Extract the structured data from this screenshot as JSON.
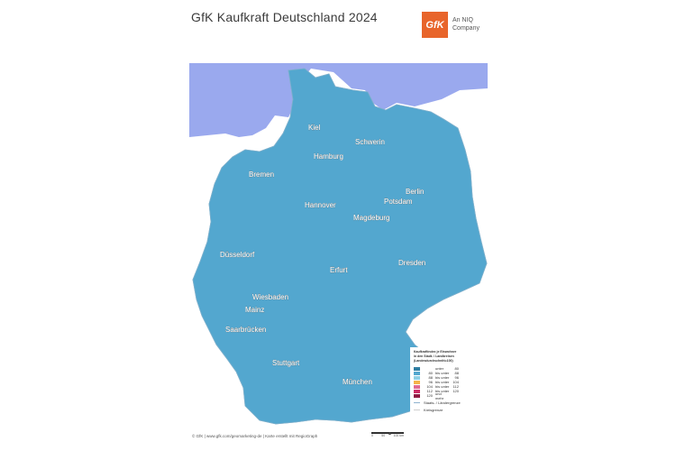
{
  "header": {
    "title": "GfK Kaufkraft Deutschland 2024",
    "logo_text": "GfK",
    "logo_sub_1": "An NIQ",
    "logo_sub_2": "Company"
  },
  "colors": {
    "sea": "#9aa9ee",
    "c_unter_80": "#2f7ea2",
    "c_80_88": "#53a7cf",
    "c_88_96": "#8ecfe4",
    "c_96_104": "#f5b34a",
    "c_104_112": "#e06a92",
    "c_112_120": "#cc2f67",
    "c_120": "#8f1a43"
  },
  "cities": [
    {
      "name": "Kiel"
    },
    {
      "name": "Schwerin"
    },
    {
      "name": "Hamburg"
    },
    {
      "name": "Bremen"
    },
    {
      "name": "Berlin"
    },
    {
      "name": "Hannover"
    },
    {
      "name": "Potsdam"
    },
    {
      "name": "Magdeburg"
    },
    {
      "name": "Düsseldorf"
    },
    {
      "name": "Erfurt"
    },
    {
      "name": "Dresden"
    },
    {
      "name": "Wiesbaden"
    },
    {
      "name": "Mainz"
    },
    {
      "name": "Saarbrücken"
    },
    {
      "name": "Stuttgart"
    },
    {
      "name": "München"
    }
  ],
  "legend": {
    "title_1": "Kaufkraftindex je Einwohner",
    "title_2": "in den Stadt- / Landkreisen",
    "title_3": "(Landesdurchschnitt=100)",
    "rows": [
      {
        "from": "",
        "op": "unter",
        "to": "80"
      },
      {
        "from": "80",
        "op": "bis unter",
        "to": "88"
      },
      {
        "from": "88",
        "op": "bis unter",
        "to": "96"
      },
      {
        "from": "96",
        "op": "bis unter",
        "to": "104"
      },
      {
        "from": "104",
        "op": "bis unter",
        "to": "112"
      },
      {
        "from": "112",
        "op": "bis unter",
        "to": "120"
      },
      {
        "from": "120",
        "op": "und mehr",
        "to": ""
      }
    ],
    "line_state": "Staats- / Ländergrenze",
    "line_district": "Kreisgrenze"
  },
  "footer": "© GfK | www.gfk.com/geomarketing-de | Karte erstellt mit RegioGraph",
  "scale_labels": [
    "0",
    "50",
    "100 km"
  ]
}
